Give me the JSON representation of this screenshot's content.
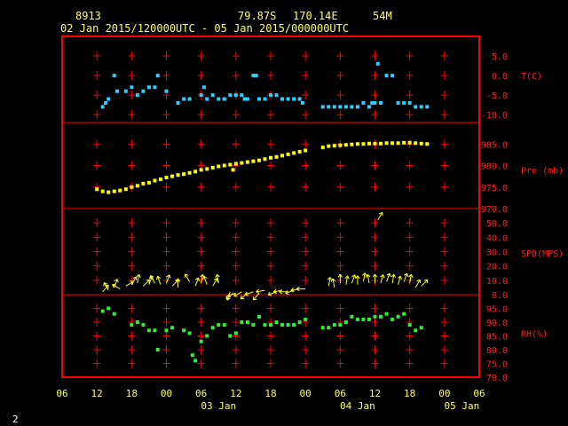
{
  "header": {
    "station_id": "8913",
    "latitude": "79.87S",
    "longitude": "170.14E",
    "elevation": "54M",
    "time_range": "02 Jan 2015/120000UTC - 05 Jan 2015/000000UTC"
  },
  "page_number": "2",
  "colors": {
    "frame": "#ff0000",
    "tick_text": "#ff2020",
    "axis_text": "#ffff66",
    "temperature": "#33ccff",
    "pressure": "#ffff00",
    "wind": "#ffff33",
    "humidity": "#33ee33"
  },
  "chart_data": {
    "type": "scatter",
    "x_axis": {
      "range_hours": [
        -6,
        66
      ],
      "hour_labels": [
        "06",
        "12",
        "18",
        "00",
        "06",
        "12",
        "18",
        "00",
        "06",
        "12",
        "18",
        "00",
        "06"
      ],
      "date_labels": [
        {
          "hour": 21,
          "text": "03 Jan"
        },
        {
          "hour": 45,
          "text": "04 Jan"
        },
        {
          "hour": 63,
          "text": "05 Jan"
        }
      ]
    },
    "panels": [
      {
        "name": "temperature",
        "label": "T(C)",
        "ylim": [
          -12,
          10
        ],
        "ticks": [
          "5.0",
          "0.0",
          "-5.0",
          "-10.0"
        ],
        "tick_values": [
          5,
          0,
          -5,
          -10
        ],
        "points": [
          [
            1,
            -8
          ],
          [
            1.5,
            -7
          ],
          [
            2,
            -6
          ],
          [
            3,
            0
          ],
          [
            3.5,
            -4
          ],
          [
            5,
            -4
          ],
          [
            6,
            -3
          ],
          [
            7,
            -5
          ],
          [
            8,
            -4
          ],
          [
            9,
            -3
          ],
          [
            10,
            -3
          ],
          [
            10.5,
            0
          ],
          [
            12,
            -4
          ],
          [
            14,
            -7
          ],
          [
            15,
            -6
          ],
          [
            16,
            -6
          ],
          [
            18,
            -5
          ],
          [
            18.5,
            -3
          ],
          [
            19,
            -6
          ],
          [
            20,
            -5
          ],
          [
            21,
            -6
          ],
          [
            22,
            -6
          ],
          [
            23,
            -5
          ],
          [
            24,
            -5
          ],
          [
            25,
            -5
          ],
          [
            25.5,
            -6
          ],
          [
            26,
            -6
          ],
          [
            27,
            0
          ],
          [
            27.5,
            0
          ],
          [
            28,
            -6
          ],
          [
            29,
            -6
          ],
          [
            30,
            -5
          ],
          [
            31,
            -5
          ],
          [
            32,
            -6
          ],
          [
            33,
            -6
          ],
          [
            34,
            -6
          ],
          [
            35,
            -6
          ],
          [
            35.5,
            -7
          ],
          [
            39,
            -8
          ],
          [
            40,
            -8
          ],
          [
            41,
            -8
          ],
          [
            42,
            -8
          ],
          [
            43,
            -8
          ],
          [
            44,
            -8
          ],
          [
            45,
            -8
          ],
          [
            46,
            -7
          ],
          [
            47,
            -8
          ],
          [
            47.5,
            -7
          ],
          [
            48,
            -7
          ],
          [
            48.5,
            3
          ],
          [
            49,
            -7
          ],
          [
            50,
            0
          ],
          [
            51,
            0
          ],
          [
            52,
            -7
          ],
          [
            53,
            -7
          ],
          [
            54,
            -7
          ],
          [
            55,
            -8
          ],
          [
            56,
            -8
          ],
          [
            57,
            -8
          ]
        ]
      },
      {
        "name": "pressure",
        "label": "Pre (mb)",
        "ylim": [
          970,
          990
        ],
        "ticks": [
          "985.0",
          "980.0",
          "975.0",
          "970.0"
        ],
        "tick_values": [
          985,
          980,
          975,
          970
        ],
        "points": [
          [
            0,
            974.5
          ],
          [
            1,
            974
          ],
          [
            2,
            973.8
          ],
          [
            3,
            974
          ],
          [
            4,
            974.2
          ],
          [
            5,
            974.5
          ],
          [
            6,
            975
          ],
          [
            7,
            975.3
          ],
          [
            8,
            975.8
          ],
          [
            9,
            976
          ],
          [
            10,
            976.5
          ],
          [
            11,
            976.8
          ],
          [
            12,
            977.2
          ],
          [
            13,
            977.5
          ],
          [
            14,
            977.8
          ],
          [
            15,
            978
          ],
          [
            16,
            978.3
          ],
          [
            17,
            978.6
          ],
          [
            18,
            979
          ],
          [
            19,
            979.2
          ],
          [
            20,
            979.5
          ],
          [
            21,
            979.8
          ],
          [
            22,
            980
          ],
          [
            23,
            980.2
          ],
          [
            23.5,
            979
          ],
          [
            24,
            980.4
          ],
          [
            25,
            980.6
          ],
          [
            26,
            980.8
          ],
          [
            27,
            981
          ],
          [
            28,
            981.2
          ],
          [
            29,
            981.5
          ],
          [
            30,
            981.8
          ],
          [
            31,
            982
          ],
          [
            32,
            982.3
          ],
          [
            33,
            982.6
          ],
          [
            34,
            982.9
          ],
          [
            35,
            983.2
          ],
          [
            36,
            983.5
          ],
          [
            39,
            984.2
          ],
          [
            40,
            984.5
          ],
          [
            41,
            984.6
          ],
          [
            42,
            984.7
          ],
          [
            43,
            984.8
          ],
          [
            44,
            984.9
          ],
          [
            45,
            985
          ],
          [
            46,
            985
          ],
          [
            47,
            985.1
          ],
          [
            48,
            985.1
          ],
          [
            49,
            985.1
          ],
          [
            50,
            985.2
          ],
          [
            51,
            985.2
          ],
          [
            52,
            985.2
          ],
          [
            53,
            985.3
          ],
          [
            54,
            985.3
          ],
          [
            55,
            985.2
          ],
          [
            56,
            985.1
          ],
          [
            57,
            985
          ]
        ]
      },
      {
        "name": "wind",
        "label": "SPD(MPS)",
        "ylim": [
          0,
          60
        ],
        "ticks": [
          "50.0",
          "40.0",
          "30.0",
          "20.0",
          "10.0",
          "0.0"
        ],
        "tick_values": [
          50,
          40,
          30,
          20,
          10,
          0
        ],
        "arrows": [
          [
            1,
            2,
            40
          ],
          [
            2,
            3,
            330
          ],
          [
            3,
            5,
            20
          ],
          [
            4,
            4,
            300
          ],
          [
            5,
            6,
            60
          ],
          [
            6,
            7,
            30
          ],
          [
            7,
            8,
            10
          ],
          [
            8,
            6,
            45
          ],
          [
            9,
            7,
            20
          ],
          [
            10,
            8,
            330
          ],
          [
            11,
            7,
            340
          ],
          [
            12,
            8,
            20
          ],
          [
            13,
            6,
            45
          ],
          [
            14,
            5,
            0
          ],
          [
            16,
            9,
            330
          ],
          [
            17,
            6,
            20
          ],
          [
            18,
            8,
            10
          ],
          [
            19,
            7,
            340
          ],
          [
            20,
            6,
            30
          ],
          [
            21,
            8,
            350
          ],
          [
            23,
            2,
            200
          ],
          [
            23.5,
            1,
            230
          ],
          [
            24,
            1,
            250
          ],
          [
            25,
            2,
            240
          ],
          [
            26,
            1,
            230
          ],
          [
            27,
            2,
            250
          ],
          [
            28,
            1,
            220
          ],
          [
            29,
            3,
            260
          ],
          [
            31,
            2,
            250
          ],
          [
            32,
            3,
            260
          ],
          [
            33,
            2,
            270
          ],
          [
            34,
            3,
            250
          ],
          [
            35,
            4,
            260
          ],
          [
            36,
            4,
            270
          ],
          [
            40,
            6,
            10
          ],
          [
            41,
            5,
            350
          ],
          [
            42,
            8,
            0
          ],
          [
            43,
            7,
            10
          ],
          [
            44,
            8,
            20
          ],
          [
            45,
            7,
            0
          ],
          [
            46,
            9,
            10
          ],
          [
            47,
            8,
            350
          ],
          [
            48,
            8,
            0
          ],
          [
            49,
            8,
            15
          ],
          [
            50,
            9,
            20
          ],
          [
            51,
            8,
            10
          ],
          [
            52,
            7,
            15
          ],
          [
            53,
            9,
            20
          ],
          [
            54,
            8,
            10
          ],
          [
            55,
            5,
            30
          ],
          [
            56,
            6,
            45
          ],
          [
            48.5,
            52,
            30
          ]
        ]
      },
      {
        "name": "humidity",
        "label": "RH(%)",
        "ylim": [
          70,
          100
        ],
        "ticks": [
          "95.0",
          "90.0",
          "85.0",
          "80.0",
          "75.0",
          "70.0"
        ],
        "tick_values": [
          95,
          90,
          85,
          80,
          75,
          70
        ],
        "points": [
          [
            1,
            94
          ],
          [
            2,
            95
          ],
          [
            3,
            93
          ],
          [
            6,
            89
          ],
          [
            7,
            90
          ],
          [
            8,
            89
          ],
          [
            9,
            87
          ],
          [
            10,
            87
          ],
          [
            10.5,
            80
          ],
          [
            12,
            87
          ],
          [
            13,
            88
          ],
          [
            15,
            87
          ],
          [
            16,
            86
          ],
          [
            16.5,
            78
          ],
          [
            17,
            76
          ],
          [
            18,
            83
          ],
          [
            19,
            85
          ],
          [
            20,
            88
          ],
          [
            21,
            89
          ],
          [
            22,
            89
          ],
          [
            23,
            85
          ],
          [
            24,
            86
          ],
          [
            25,
            90
          ],
          [
            26,
            90
          ],
          [
            27,
            89
          ],
          [
            28,
            92
          ],
          [
            29,
            89
          ],
          [
            30,
            89
          ],
          [
            31,
            90
          ],
          [
            32,
            89
          ],
          [
            33,
            89
          ],
          [
            34,
            89
          ],
          [
            35,
            90
          ],
          [
            36,
            91
          ],
          [
            39,
            88
          ],
          [
            40,
            88
          ],
          [
            41,
            89
          ],
          [
            42,
            89
          ],
          [
            43,
            90
          ],
          [
            44,
            92
          ],
          [
            45,
            91
          ],
          [
            46,
            91
          ],
          [
            47,
            91
          ],
          [
            48,
            92
          ],
          [
            49,
            92
          ],
          [
            50,
            93
          ],
          [
            51,
            91
          ],
          [
            52,
            92
          ],
          [
            53,
            93
          ],
          [
            54,
            89
          ],
          [
            55,
            87
          ],
          [
            56,
            88
          ]
        ]
      }
    ]
  }
}
